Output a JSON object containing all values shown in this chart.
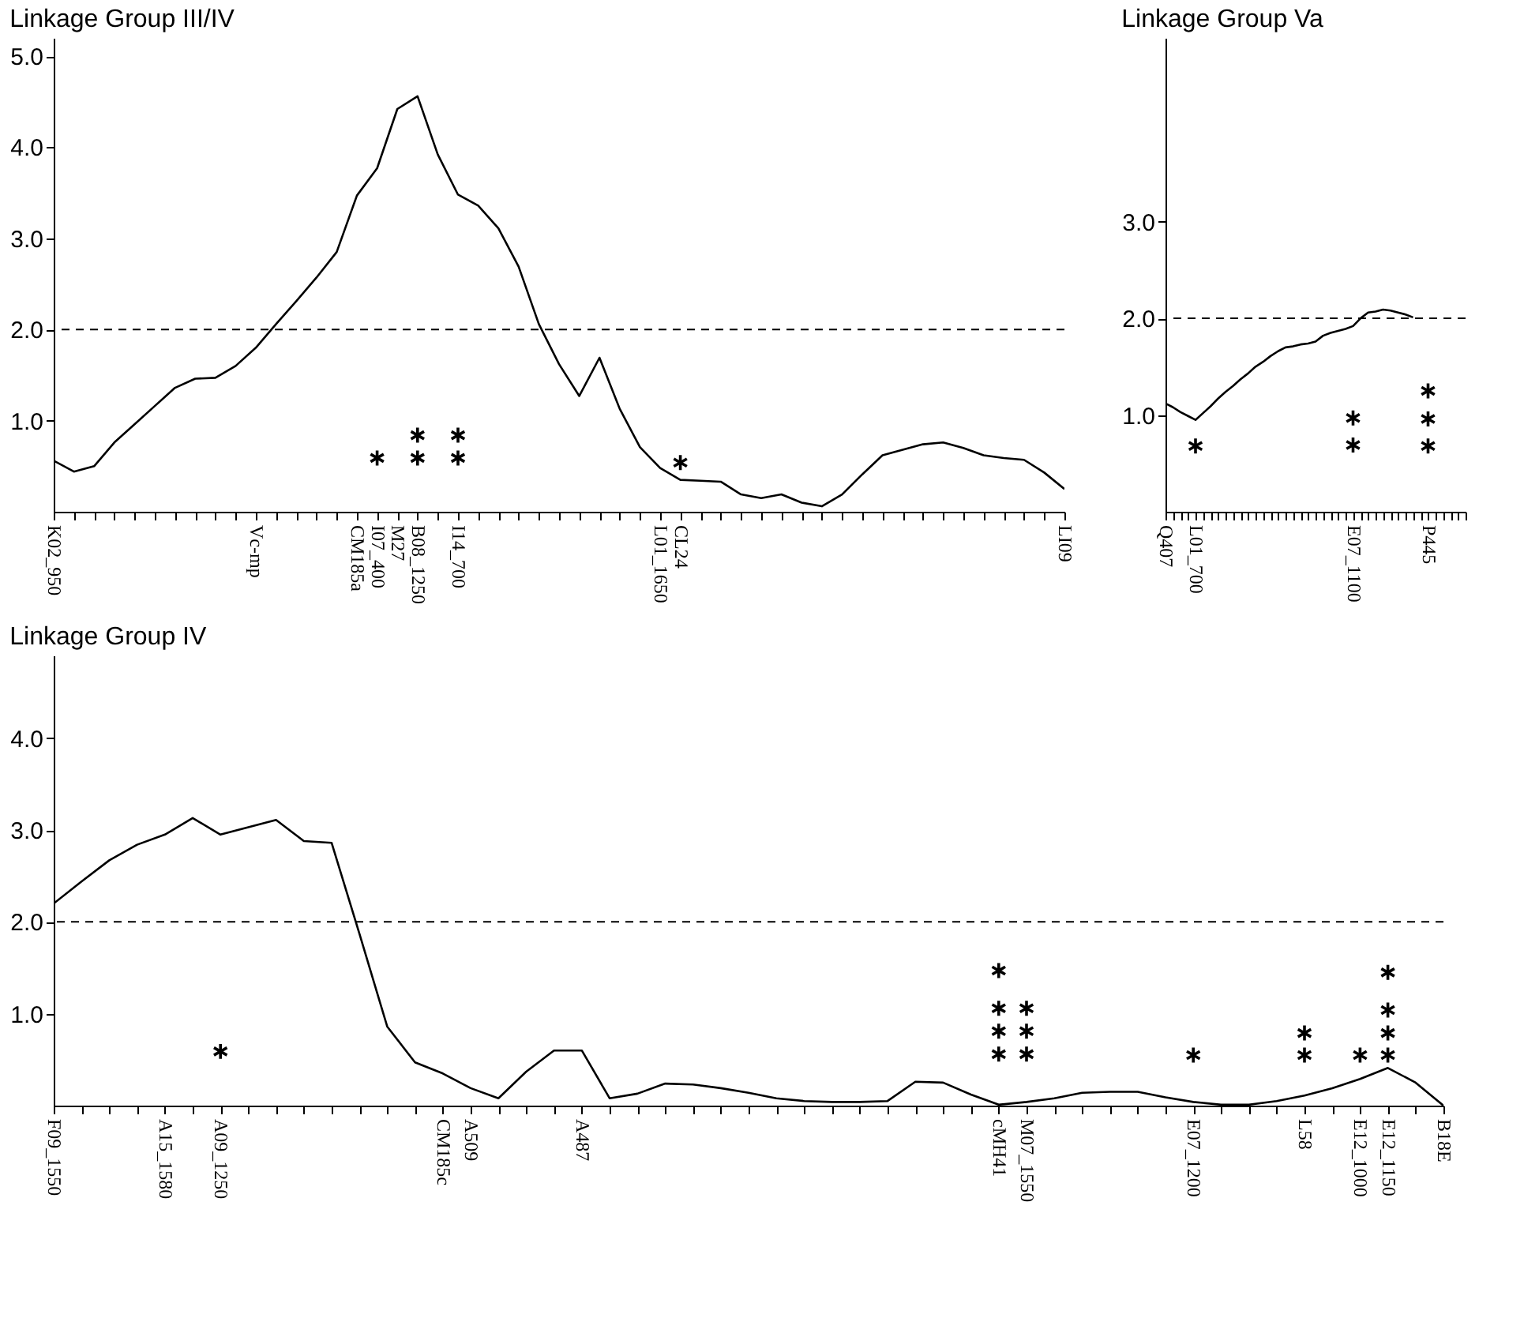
{
  "chart_data": [
    {
      "type": "line",
      "title": "Linkage Group III/IV",
      "categories": [
        "K02_950",
        null,
        null,
        null,
        null,
        null,
        null,
        null,
        null,
        null,
        "Vc-mp",
        null,
        null,
        null,
        null,
        "CM185a",
        "I07_400",
        "M27",
        "B08_1250",
        null,
        "I14_700",
        null,
        null,
        null,
        null,
        null,
        null,
        null,
        null,
        null,
        "L01_1650",
        "CL24",
        null,
        null,
        null,
        null,
        null,
        null,
        null,
        null,
        null,
        null,
        null,
        null,
        null,
        null,
        null,
        null,
        null,
        null,
        "LI09"
      ],
      "series": [
        {
          "color": "#000000",
          "values": [
            0.56,
            0.44,
            0.5,
            0.76,
            0.96,
            1.16,
            1.36,
            1.46,
            1.47,
            1.6,
            1.8,
            2.06,
            2.31,
            2.57,
            2.85,
            3.47,
            3.77,
            4.42,
            4.56,
            3.92,
            3.48,
            3.36,
            3.11,
            2.69,
            2.06,
            1.62,
            1.27,
            1.69,
            1.13,
            0.71,
            0.48,
            0.35,
            0.34,
            0.33,
            0.19,
            0.15,
            0.19,
            0.1,
            0.06,
            0.19,
            0.41,
            0.62,
            0.68,
            0.74,
            0.76,
            0.7,
            0.62,
            0.59,
            0.57,
            0.43,
            0.25
          ]
        },
        {
          "type": "scatter",
          "marker": "cross",
          "color": "#000000",
          "x": [
            "I07_400",
            "B08_1250",
            "B08_1250",
            "I14_700",
            "I14_700",
            "CL24"
          ],
          "values": [
            0.59,
            0.84,
            0.59,
            0.84,
            0.59,
            0.54
          ]
        }
      ],
      "ylim": [
        0,
        5.2
      ],
      "yticks": [
        {
          "value": 1,
          "label": "1.0"
        },
        {
          "value": 2,
          "label": "2.0"
        },
        {
          "value": 3,
          "label": "3.0"
        },
        {
          "value": 4,
          "label": "4.0"
        },
        {
          "value": 5,
          "label": "5.0"
        }
      ],
      "ref_lines": [
        {
          "axis": "y",
          "value": 2,
          "line_style": "dashed"
        }
      ]
    },
    {
      "type": "line",
      "title": "Linkage Group Va",
      "categories": [
        "Q407",
        null,
        null,
        null,
        "L01_700",
        null,
        null,
        null,
        null,
        null,
        null,
        null,
        null,
        null,
        null,
        null,
        null,
        null,
        null,
        null,
        null,
        null,
        null,
        null,
        null,
        "E07_1100",
        null,
        null,
        null,
        null,
        null,
        null,
        null,
        null,
        null,
        "P445",
        null,
        null,
        null,
        null,
        null
      ],
      "series": [
        {
          "color": "#000000",
          "values": [
            1.12,
            1.08,
            1.03,
            0.99,
            0.95,
            1.02,
            1.09,
            1.17,
            1.24,
            1.3,
            1.37,
            1.43,
            1.5,
            1.55,
            1.61,
            1.66,
            1.7,
            1.71,
            1.73,
            1.74,
            1.76,
            1.82,
            1.85,
            1.87,
            1.89,
            1.92,
            2.0,
            2.06,
            2.07,
            2.09,
            2.08,
            2.06,
            2.04,
            2.01,
            null,
            null,
            null,
            null,
            null,
            null,
            null
          ]
        },
        {
          "type": "scatter",
          "marker": "cross",
          "color": "#000000",
          "x": [
            "L01_700",
            "E07_1100",
            "E07_1100",
            "P445",
            "P445",
            "P445"
          ],
          "values": [
            0.68,
            0.97,
            0.69,
            1.25,
            0.96,
            0.68
          ]
        }
      ],
      "ylim": [
        0,
        4.9
      ],
      "yticks": [
        {
          "value": 1,
          "label": "1.0"
        },
        {
          "value": 2,
          "label": "2.0"
        },
        {
          "value": 3,
          "label": "3.0"
        }
      ],
      "ref_lines": [
        {
          "axis": "y",
          "value": 2,
          "line_style": "dashed"
        }
      ]
    },
    {
      "type": "line",
      "title": "Linkage Group IV",
      "categories": [
        "F09_1550",
        null,
        null,
        null,
        "A15_1580",
        null,
        "A09_1250",
        null,
        null,
        null,
        null,
        null,
        null,
        null,
        "CM185c",
        "A509",
        null,
        null,
        null,
        "A487",
        null,
        null,
        null,
        null,
        null,
        null,
        null,
        null,
        null,
        null,
        null,
        null,
        null,
        null,
        "cMH41",
        "M07_1550",
        null,
        null,
        null,
        null,
        null,
        "E07_1200",
        null,
        null,
        null,
        "L58",
        null,
        "E12_1000",
        "E12_1150",
        null,
        "B18E"
      ],
      "series": [
        {
          "color": "#000000",
          "values": [
            2.2,
            2.44,
            2.67,
            2.84,
            2.95,
            3.13,
            2.95,
            3.03,
            3.11,
            2.88,
            2.86,
            1.87,
            0.86,
            0.47,
            0.35,
            0.19,
            0.08,
            0.37,
            0.6,
            0.6,
            0.08,
            0.13,
            0.24,
            0.23,
            0.19,
            0.14,
            0.08,
            0.05,
            0.04,
            0.04,
            0.05,
            0.26,
            0.25,
            0.12,
            0.01,
            0.04,
            0.08,
            0.14,
            0.15,
            0.15,
            0.09,
            0.04,
            0.01,
            0.01,
            0.05,
            0.11,
            0.19,
            0.29,
            0.41,
            0.25,
            0
          ]
        },
        {
          "type": "scatter",
          "marker": "cross",
          "color": "#000000",
          "x": [
            "A09_1250",
            "cMH41",
            "cMH41",
            "cMH41",
            "cMH41",
            "M07_1550",
            "M07_1550",
            "M07_1550",
            "E07_1200",
            "L58",
            "L58",
            "E12_1000",
            "E12_1150",
            "E12_1150",
            "E12_1150",
            "E12_1150"
          ],
          "values": [
            0.59,
            1.47,
            1.06,
            0.81,
            0.56,
            1.06,
            0.81,
            0.56,
            0.55,
            0.79,
            0.55,
            0.55,
            1.45,
            1.04,
            0.79,
            0.55
          ]
        }
      ],
      "ylim": [
        0,
        4.9
      ],
      "yticks": [
        {
          "value": 1,
          "label": "1.0"
        },
        {
          "value": 2,
          "label": "2.0"
        },
        {
          "value": 3,
          "label": "3.0"
        },
        {
          "value": 4,
          "label": "4.0"
        }
      ],
      "ref_lines": [
        {
          "axis": "y",
          "value": 2,
          "line_style": "dashed"
        }
      ]
    }
  ]
}
